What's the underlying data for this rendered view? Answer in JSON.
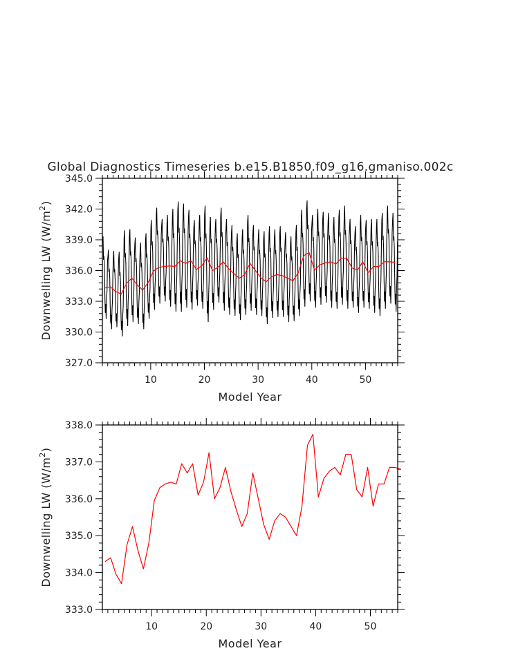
{
  "figure": {
    "title": "Global Diagnostics Timeseries b.e15.B1850.f09_g16.gmaniso.002c"
  },
  "chart_data": [
    {
      "type": "line",
      "xlabel": "Model Year",
      "ylabel": "Downwelling LW (W/m²)",
      "ylabel_main": "Downwelling LW (W/m",
      "ylabel_sup": "2",
      "ylabel_tail": ")",
      "xlim": [
        1,
        56
      ],
      "ylim": [
        327.0,
        345.0
      ],
      "xticks": [
        10,
        20,
        30,
        40,
        50
      ],
      "xtick_labels": [
        "10",
        "20",
        "30",
        "40",
        "50"
      ],
      "yticks": [
        327.0,
        330.0,
        333.0,
        336.0,
        339.0,
        342.0,
        345.0
      ],
      "ytick_labels": [
        "327.0",
        "330.0",
        "333.0",
        "336.0",
        "339.0",
        "342.0",
        "345.0"
      ],
      "grid": false,
      "series": [
        {
          "color": "#000000",
          "x_start_year": 1,
          "monthly_base": [
            334.2,
            334.3,
            333.9,
            333.7,
            334.8,
            335.2,
            334.6,
            334.1,
            334.8,
            336.0,
            336.3,
            336.4,
            336.4,
            336.4,
            336.9,
            336.7,
            336.9,
            336.1,
            336.4,
            337.2,
            336.0,
            336.3,
            336.8,
            336.2,
            335.7,
            335.3,
            335.6,
            336.7,
            336.0,
            335.3,
            334.9,
            335.4,
            335.6,
            335.5,
            335.2,
            335.0,
            335.8,
            337.4,
            337.7,
            336.0,
            336.5,
            336.8,
            336.9,
            336.6,
            337.2,
            337.2,
            336.2,
            336.0,
            336.8,
            335.8,
            336.4,
            336.4,
            336.8,
            336.8,
            336.8
          ],
          "seasonal_amplitude": 4.6,
          "annual_peaks": [
            339.3,
            338.0,
            337.9,
            337.8,
            339.9,
            340.0,
            339.2,
            338.7,
            339.6,
            340.9,
            342.1,
            341.0,
            341.4,
            342.0,
            342.7,
            342.5,
            341.9,
            340.9,
            341.4,
            342.3,
            341.2,
            341.0,
            342.1,
            341.0,
            340.4,
            339.6,
            340.0,
            341.4,
            340.4,
            340.0,
            339.8,
            340.3,
            340.0,
            340.3,
            339.7,
            339.3,
            340.4,
            341.9,
            342.8,
            341.4,
            342.0,
            341.7,
            341.6,
            341.2,
            341.9,
            342.3,
            341.0,
            340.3,
            341.4,
            340.9,
            341.0,
            341.0,
            341.6,
            342.3,
            341.6
          ],
          "annual_troughs": [
            331.3,
            330.3,
            330.5,
            329.6,
            330.6,
            331.0,
            330.8,
            330.3,
            331.3,
            332.2,
            332.8,
            333.0,
            332.5,
            332.0,
            332.0,
            332.4,
            332.2,
            332.6,
            332.3,
            331.0,
            332.2,
            332.9,
            332.1,
            331.7,
            331.6,
            331.2,
            331.7,
            332.1,
            331.7,
            331.6,
            330.8,
            331.4,
            331.5,
            331.5,
            331.0,
            331.1,
            331.6,
            332.5,
            333.0,
            332.4,
            332.7,
            332.9,
            332.4,
            332.3,
            332.7,
            332.3,
            332.4,
            331.9,
            332.4,
            332.3,
            331.9,
            331.6,
            332.3,
            332.8,
            332.0
          ]
        },
        {
          "color": "#ff0000",
          "x": [
            1.5,
            2.5,
            3.5,
            4.5,
            5.5,
            6.5,
            7.5,
            8.5,
            9.5,
            10.5,
            11.5,
            12.5,
            13.5,
            14.5,
            15.5,
            16.5,
            17.5,
            18.5,
            19.5,
            20.5,
            21.5,
            22.5,
            23.5,
            24.5,
            25.5,
            26.5,
            27.5,
            28.5,
            29.5,
            30.5,
            31.5,
            32.5,
            33.5,
            34.5,
            35.5,
            36.5,
            37.5,
            38.5,
            39.5,
            40.5,
            41.5,
            42.5,
            43.5,
            44.5,
            45.5,
            46.5,
            47.5,
            48.5,
            49.5,
            50.5,
            51.5,
            52.5,
            53.5,
            54.5,
            55.5
          ],
          "values": [
            334.3,
            334.4,
            333.95,
            333.7,
            334.75,
            335.25,
            334.6,
            334.1,
            334.8,
            335.95,
            336.3,
            336.4,
            336.45,
            336.4,
            336.95,
            336.7,
            336.95,
            336.1,
            336.45,
            337.25,
            336.0,
            336.3,
            336.85,
            336.2,
            335.7,
            335.25,
            335.6,
            336.7,
            336.0,
            335.3,
            334.9,
            335.4,
            335.6,
            335.5,
            335.25,
            335.0,
            335.8,
            337.45,
            337.75,
            336.05,
            336.55,
            336.75,
            336.85,
            336.65,
            337.2,
            337.2,
            336.25,
            336.05,
            336.85,
            335.8,
            336.4,
            336.4,
            336.85,
            336.85,
            336.8
          ]
        }
      ]
    },
    {
      "type": "line",
      "xlabel": "Model Year",
      "ylabel": "Downwelling LW (W/m²)",
      "ylabel_main": "Downwelling LW (W/m",
      "ylabel_sup": "2",
      "ylabel_tail": ")",
      "xlim": [
        1,
        55
      ],
      "ylim": [
        333.0,
        338.0
      ],
      "xticks": [
        10,
        20,
        30,
        40,
        50
      ],
      "xtick_labels": [
        "10",
        "20",
        "30",
        "40",
        "50"
      ],
      "yticks": [
        333.0,
        334.0,
        335.0,
        336.0,
        337.0,
        338.0
      ],
      "ytick_labels": [
        "333.0",
        "334.0",
        "335.0",
        "336.0",
        "337.0",
        "338.0"
      ],
      "grid": false,
      "series": [
        {
          "color": "#ff0000",
          "x": [
            1.5,
            2.5,
            3.5,
            4.5,
            5.5,
            6.5,
            7.5,
            8.5,
            9.5,
            10.5,
            11.5,
            12.5,
            13.5,
            14.5,
            15.5,
            16.5,
            17.5,
            18.5,
            19.5,
            20.5,
            21.5,
            22.5,
            23.5,
            24.5,
            25.5,
            26.5,
            27.5,
            28.5,
            29.5,
            30.5,
            31.5,
            32.5,
            33.5,
            34.5,
            35.5,
            36.5,
            37.5,
            38.5,
            39.5,
            40.5,
            41.5,
            42.5,
            43.5,
            44.5,
            45.5,
            46.5,
            47.5,
            48.5,
            49.5,
            50.5,
            51.5,
            52.5,
            53.5,
            54.5,
            55.5
          ],
          "values": [
            334.3,
            334.4,
            333.95,
            333.7,
            334.75,
            335.25,
            334.6,
            334.1,
            334.8,
            335.95,
            336.3,
            336.4,
            336.45,
            336.4,
            336.95,
            336.7,
            336.95,
            336.1,
            336.45,
            337.25,
            336.0,
            336.3,
            336.85,
            336.2,
            335.7,
            335.25,
            335.6,
            336.7,
            336.0,
            335.3,
            334.9,
            335.4,
            335.6,
            335.5,
            335.25,
            335.0,
            335.8,
            337.45,
            337.75,
            336.05,
            336.55,
            336.75,
            336.85,
            336.65,
            337.2,
            337.2,
            336.25,
            336.05,
            336.85,
            335.8,
            336.4,
            336.4,
            336.85,
            336.85,
            336.8
          ]
        }
      ]
    }
  ]
}
